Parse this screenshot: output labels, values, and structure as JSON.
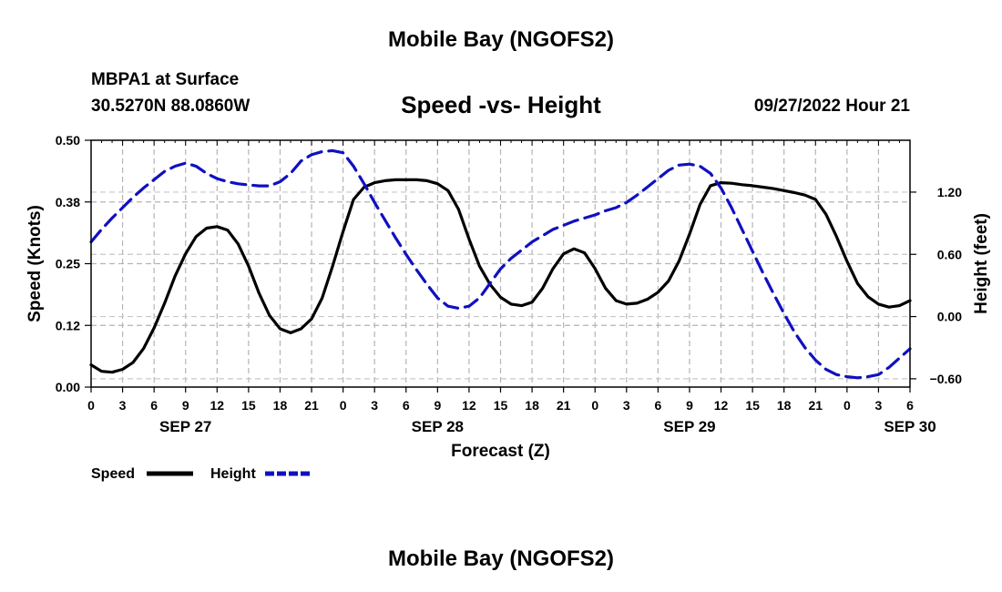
{
  "page": {
    "title": "Mobile Bay (NGOFS2)",
    "station": "MBPA1 at Surface",
    "coords": "30.5270N  88.0860W",
    "forecast_time": "09/27/2022 Hour 21",
    "bottom_title": "Mobile Bay (NGOFS2)"
  },
  "chart_data": {
    "type": "line",
    "title": "Speed -vs- Height",
    "xlabel": "Forecast (Z)",
    "ylabel_left": "Speed (Knots)",
    "ylabel_right": "Height (feet)",
    "x_unit": "hours since 2022-09-27 00Z",
    "xlim": [
      0,
      78
    ],
    "x_tick_values": [
      0,
      3,
      6,
      9,
      12,
      15,
      18,
      21,
      24,
      27,
      30,
      33,
      36,
      39,
      42,
      45,
      48,
      51,
      54,
      57,
      60,
      63,
      66,
      69,
      72,
      75,
      78
    ],
    "x_tick_labels": [
      "0",
      "3",
      "6",
      "9",
      "12",
      "15",
      "18",
      "21",
      "0",
      "3",
      "6",
      "9",
      "12",
      "15",
      "18",
      "21",
      "0",
      "3",
      "6",
      "9",
      "12",
      "15",
      "18",
      "21",
      "0",
      "3",
      "6"
    ],
    "date_labels": [
      {
        "x": 9,
        "label": "SEP 27"
      },
      {
        "x": 33,
        "label": "SEP 28"
      },
      {
        "x": 57,
        "label": "SEP 29"
      },
      {
        "x": 78,
        "label": "SEP 30"
      }
    ],
    "ylim_left": [
      0,
      0.5
    ],
    "y_ticks_left": [
      "0.00",
      "0.12",
      "0.25",
      "0.38",
      "0.50"
    ],
    "ylim_right": [
      -0.68,
      1.7
    ],
    "y_ticks_right": [
      {
        "value": -0.6,
        "label": "−0.60"
      },
      {
        "value": 0.0,
        "label": "0.00"
      },
      {
        "value": 0.6,
        "label": "0.60"
      },
      {
        "value": 1.2,
        "label": "1.20"
      }
    ],
    "grid": true,
    "legend_position": "bottom-left",
    "series": [
      {
        "name": "Speed",
        "axis": "left",
        "color": "#000000",
        "dash": "solid",
        "x": [
          0,
          1,
          2,
          3,
          4,
          5,
          6,
          7,
          8,
          9,
          10,
          11,
          12,
          13,
          14,
          15,
          16,
          17,
          18,
          19,
          20,
          21,
          22,
          23,
          24,
          25,
          26,
          27,
          28,
          29,
          30,
          31,
          32,
          33,
          34,
          35,
          36,
          37,
          38,
          39,
          40,
          41,
          42,
          43,
          44,
          45,
          46,
          47,
          48,
          49,
          50,
          51,
          52,
          53,
          54,
          55,
          56,
          57,
          58,
          59,
          60,
          61,
          62,
          63,
          64,
          65,
          66,
          67,
          68,
          69,
          70,
          71,
          72,
          73,
          74,
          75,
          76,
          77,
          78
        ],
        "values": [
          0.045,
          0.032,
          0.03,
          0.036,
          0.05,
          0.078,
          0.12,
          0.17,
          0.225,
          0.27,
          0.305,
          0.322,
          0.325,
          0.318,
          0.29,
          0.245,
          0.19,
          0.145,
          0.118,
          0.11,
          0.118,
          0.138,
          0.18,
          0.245,
          0.315,
          0.38,
          0.405,
          0.414,
          0.418,
          0.42,
          0.42,
          0.42,
          0.418,
          0.412,
          0.398,
          0.36,
          0.3,
          0.245,
          0.208,
          0.182,
          0.168,
          0.165,
          0.172,
          0.2,
          0.24,
          0.27,
          0.28,
          0.272,
          0.24,
          0.2,
          0.175,
          0.168,
          0.17,
          0.178,
          0.192,
          0.215,
          0.255,
          0.31,
          0.37,
          0.408,
          0.414,
          0.413,
          0.41,
          0.408,
          0.405,
          0.402,
          0.398,
          0.394,
          0.389,
          0.38,
          0.35,
          0.305,
          0.255,
          0.21,
          0.183,
          0.168,
          0.162,
          0.165,
          0.175
        ]
      },
      {
        "name": "Height",
        "axis": "right",
        "color": "#1010c0",
        "dash": "dashed",
        "x": [
          0,
          1,
          2,
          3,
          4,
          5,
          6,
          7,
          8,
          9,
          10,
          11,
          12,
          13,
          14,
          15,
          16,
          17,
          18,
          19,
          20,
          21,
          22,
          23,
          24,
          25,
          26,
          27,
          28,
          29,
          30,
          31,
          32,
          33,
          34,
          35,
          36,
          37,
          38,
          39,
          40,
          41,
          42,
          43,
          44,
          45,
          46,
          47,
          48,
          49,
          50,
          51,
          52,
          53,
          54,
          55,
          56,
          57,
          58,
          59,
          60,
          61,
          62,
          63,
          64,
          65,
          66,
          67,
          68,
          69,
          70,
          71,
          72,
          73,
          74,
          75,
          76,
          77,
          78
        ],
        "values": [
          0.72,
          0.84,
          0.95,
          1.05,
          1.15,
          1.24,
          1.32,
          1.4,
          1.45,
          1.48,
          1.45,
          1.38,
          1.33,
          1.3,
          1.28,
          1.27,
          1.26,
          1.26,
          1.3,
          1.38,
          1.5,
          1.56,
          1.59,
          1.6,
          1.58,
          1.45,
          1.28,
          1.1,
          0.93,
          0.76,
          0.6,
          0.45,
          0.31,
          0.18,
          0.1,
          0.08,
          0.1,
          0.18,
          0.32,
          0.46,
          0.56,
          0.64,
          0.72,
          0.78,
          0.84,
          0.88,
          0.92,
          0.95,
          0.98,
          1.02,
          1.05,
          1.1,
          1.17,
          1.25,
          1.33,
          1.41,
          1.46,
          1.47,
          1.45,
          1.38,
          1.24,
          1.05,
          0.84,
          0.63,
          0.42,
          0.22,
          0.03,
          -0.15,
          -0.3,
          -0.42,
          -0.51,
          -0.56,
          -0.58,
          -0.59,
          -0.58,
          -0.56,
          -0.49,
          -0.4,
          -0.31
        ]
      }
    ]
  }
}
